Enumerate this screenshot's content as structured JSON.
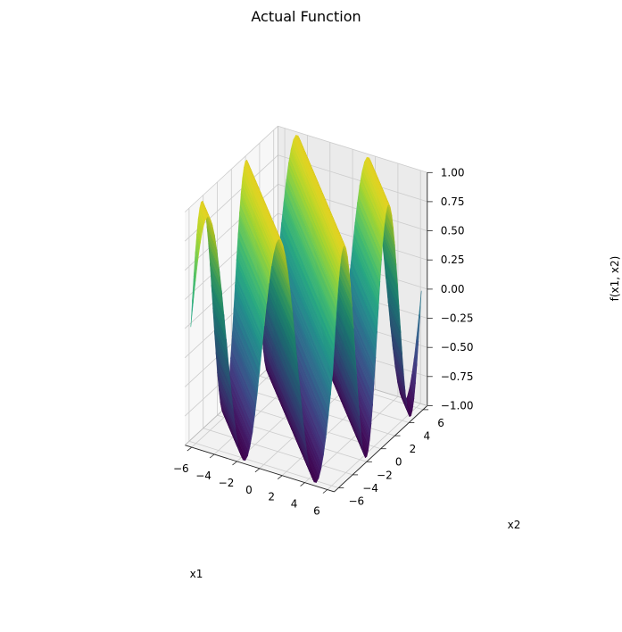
{
  "chart_data": {
    "type": "surface",
    "title": "Actual Function",
    "xlabel": "x1",
    "ylabel": "x2",
    "zlabel": "f(x1, x2)",
    "function": "sin(x1 + x2)",
    "xlim": [
      -6.6,
      6.6
    ],
    "ylim": [
      -6.6,
      6.6
    ],
    "zlim": [
      -1.0,
      1.0
    ],
    "x_range": [
      -6.28,
      6.28
    ],
    "y_range": [
      -6.28,
      6.28
    ],
    "grid_resolution": 60,
    "x_ticks": [
      -6,
      -4,
      -2,
      0,
      2,
      4,
      6
    ],
    "y_ticks": [
      -6,
      -4,
      -2,
      0,
      2,
      4,
      6
    ],
    "z_ticks": [
      -1.0,
      -0.75,
      -0.5,
      -0.25,
      0.0,
      0.25,
      0.5,
      0.75,
      1.0
    ],
    "x_tick_labels": [
      "−6",
      "−4",
      "−2",
      "0",
      "2",
      "4",
      "6"
    ],
    "y_tick_labels": [
      "−6",
      "−4",
      "−2",
      "0",
      "2",
      "4",
      "6"
    ],
    "z_tick_labels": [
      "−1.00",
      "−0.75",
      "−0.50",
      "−0.25",
      "0.00",
      "0.25",
      "0.50",
      "0.75",
      "1.00"
    ],
    "colormap": "viridis",
    "colors": [
      "#440154",
      "#482878",
      "#3e4989",
      "#31688e",
      "#26828e",
      "#1f9e89",
      "#35b779",
      "#6ece58",
      "#b5de2b",
      "#fde725"
    ],
    "grid": true,
    "pane_color": "#f2f2f2",
    "grid_color": "#cccccc"
  }
}
